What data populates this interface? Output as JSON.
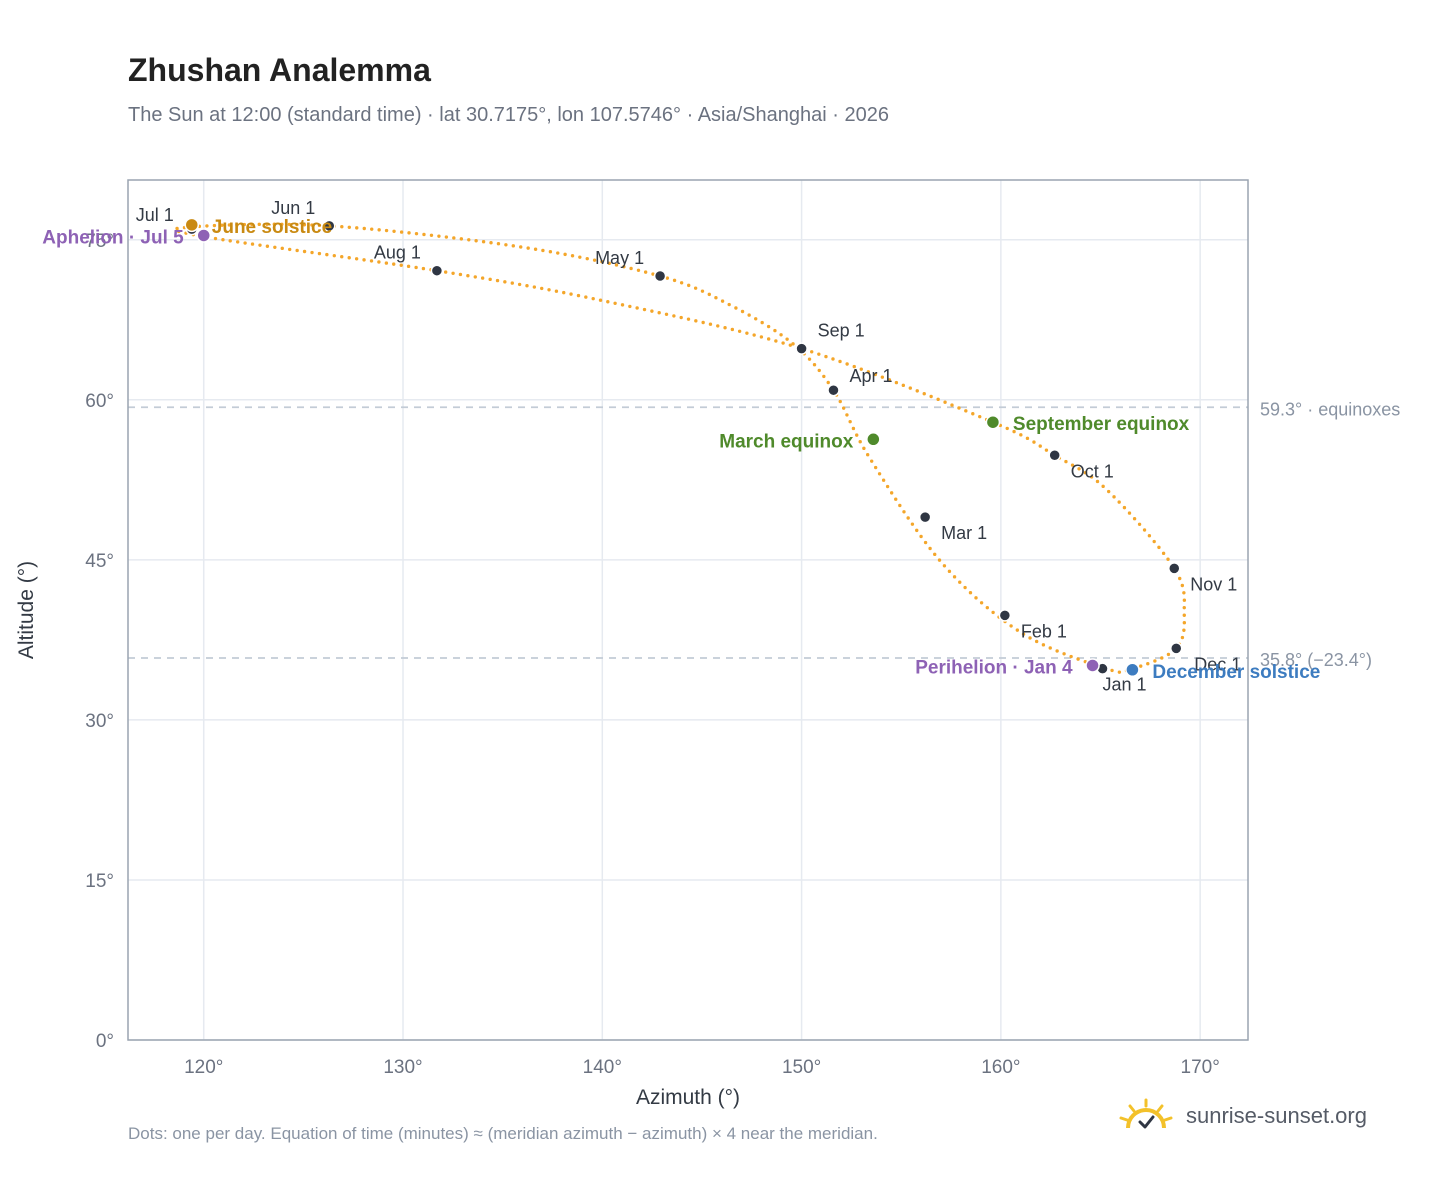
{
  "title": "Zhushan Analemma",
  "subtitle": "The Sun at 12:00 (standard time) · lat 30.7175°, lon 107.5746° · Asia/Shanghai · 2026",
  "footnote": "Dots: one per day. Equation of time (minutes) ≈ (meridian azimuth − azimuth) × 4 near the meridian.",
  "brand": {
    "text": "sunrise-sunset.org",
    "icon": "sun-logo-icon"
  },
  "colors": {
    "curve": "#f4a62a",
    "month_marker": "#2f3643",
    "equinox": "#4f8a2b",
    "december_solstice": "#3d7cc0",
    "june_solstice": "#c98a12",
    "apsis": "#8e62b5",
    "grid": "#e6eaf0",
    "reference": "#c3ccd6",
    "frame": "#9aa4b1"
  },
  "chart_data": {
    "type": "scatter",
    "xlabel": "Azimuth (°)",
    "ylabel": "Altitude (°)",
    "xlim": [
      116.2,
      172.4
    ],
    "ylim": [
      0,
      80.6
    ],
    "xticks": [
      120,
      130,
      140,
      150,
      160,
      170
    ],
    "yticks": [
      0,
      15,
      30,
      45,
      60,
      75
    ],
    "xtick_labels": [
      "120°",
      "130°",
      "140°",
      "150°",
      "160°",
      "170°"
    ],
    "ytick_labels": [
      "0°",
      "15°",
      "30°",
      "45°",
      "60°",
      "75°"
    ],
    "grid": true,
    "reference_lines": [
      {
        "y": 59.3,
        "label": "59.3° · equinoxes"
      },
      {
        "y": 35.8,
        "label": "35.8° (−23.4°)"
      }
    ],
    "analemma_path": [
      [
        165.3,
        34.8
      ],
      [
        161.0,
        38.2
      ],
      [
        157.0,
        44.8
      ],
      [
        153.4,
        54.6
      ],
      [
        151.6,
        60.9
      ],
      [
        149.6,
        65.2
      ],
      [
        146.5,
        68.8
      ],
      [
        142.9,
        71.6
      ],
      [
        136.0,
        74.3
      ],
      [
        126.3,
        76.3
      ],
      [
        119.4,
        76.2
      ],
      [
        120.0,
        75.3
      ],
      [
        131.7,
        72.1
      ],
      [
        140.0,
        69.3
      ],
      [
        150.0,
        64.8
      ],
      [
        159.6,
        57.9
      ],
      [
        162.7,
        54.8
      ],
      [
        165.3,
        51.6
      ],
      [
        168.7,
        44.2
      ],
      [
        169.2,
        40.0
      ],
      [
        168.8,
        36.7
      ],
      [
        166.6,
        34.8
      ]
    ],
    "month_markers": [
      {
        "label": "Jan 1",
        "x": 165.1,
        "y": 34.8
      },
      {
        "label": "Feb 1",
        "x": 160.2,
        "y": 39.8
      },
      {
        "label": "Mar 1",
        "x": 156.2,
        "y": 49.0
      },
      {
        "label": "Apr 1",
        "x": 151.6,
        "y": 60.9
      },
      {
        "label": "May 1",
        "x": 142.9,
        "y": 71.6
      },
      {
        "label": "Jun 1",
        "x": 126.3,
        "y": 76.3
      },
      {
        "label": "Jul 1",
        "x": 119.4,
        "y": 76.0
      },
      {
        "label": "Aug 1",
        "x": 131.7,
        "y": 72.1
      },
      {
        "label": "Sep 1",
        "x": 150.0,
        "y": 64.8
      },
      {
        "label": "Oct 1",
        "x": 162.7,
        "y": 54.8
      },
      {
        "label": "Nov 1",
        "x": 168.7,
        "y": 44.2
      },
      {
        "label": "Dec 1",
        "x": 168.8,
        "y": 36.7
      }
    ],
    "events": [
      {
        "label": "June solstice",
        "x": 119.4,
        "y": 76.4,
        "color": "#c98a12"
      },
      {
        "label": "Aphelion · Jul 5",
        "x": 120.0,
        "y": 75.4,
        "color": "#8e62b5"
      },
      {
        "label": "March equinox",
        "x": 153.6,
        "y": 56.3,
        "color": "#4f8a2b"
      },
      {
        "label": "September equinox",
        "x": 159.6,
        "y": 57.9,
        "color": "#4f8a2b"
      },
      {
        "label": "Perihelion · Jan 4",
        "x": 164.6,
        "y": 35.1,
        "color": "#8e62b5"
      },
      {
        "label": "December solstice",
        "x": 166.6,
        "y": 34.7,
        "color": "#3d7cc0"
      }
    ]
  }
}
